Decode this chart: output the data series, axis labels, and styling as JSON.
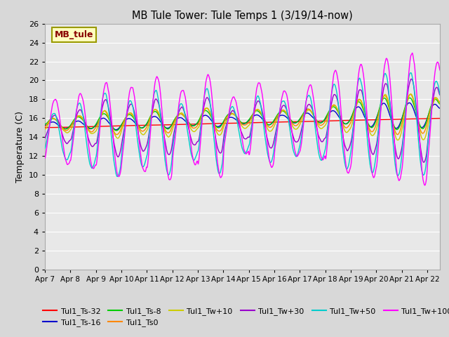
{
  "title": "MB Tule Tower: Tule Temps 1 (3/19/14-now)",
  "ylabel": "Temperature (C)",
  "xlim": [
    0,
    15.5
  ],
  "ylim": [
    0,
    26
  ],
  "yticks": [
    0,
    2,
    4,
    6,
    8,
    10,
    12,
    14,
    16,
    18,
    20,
    22,
    24,
    26
  ],
  "xtick_positions": [
    0,
    1,
    2,
    3,
    4,
    5,
    6,
    7,
    8,
    9,
    10,
    11,
    12,
    13,
    14,
    15
  ],
  "xtick_labels": [
    "Apr 7",
    "Apr 8",
    "Apr 9",
    "Apr 10",
    "Apr 11",
    "Apr 12",
    "Apr 13",
    "Apr 14",
    "Apr 15",
    "Apr 16",
    "Apr 17",
    "Apr 18",
    "Apr 19",
    "Apr 20",
    "Apr 21",
    "Apr 22"
  ],
  "legend_box_label": "MB_tule",
  "legend_box_color": "#ffffc0",
  "legend_box_edgecolor": "#999900",
  "legend_box_textcolor": "#880000",
  "fig_bg_color": "#d8d8d8",
  "plot_bg_color": "#e8e8e8",
  "grid_color": "#ffffff",
  "series": [
    {
      "label": "Tul1_Ts-32",
      "color": "#ff0000",
      "lw": 1.0
    },
    {
      "label": "Tul1_Ts-16",
      "color": "#0000cc",
      "lw": 1.0
    },
    {
      "label": "Tul1_Ts-8",
      "color": "#00cc00",
      "lw": 1.0
    },
    {
      "label": "Tul1_Ts0",
      "color": "#ff8800",
      "lw": 1.0
    },
    {
      "label": "Tul1_Tw+10",
      "color": "#cccc00",
      "lw": 1.0
    },
    {
      "label": "Tul1_Tw+30",
      "color": "#9900cc",
      "lw": 1.0
    },
    {
      "label": "Tul1_Tw+50",
      "color": "#00cccc",
      "lw": 1.0
    },
    {
      "label": "Tul1_Tw+100",
      "color": "#ff00ff",
      "lw": 1.0
    }
  ]
}
